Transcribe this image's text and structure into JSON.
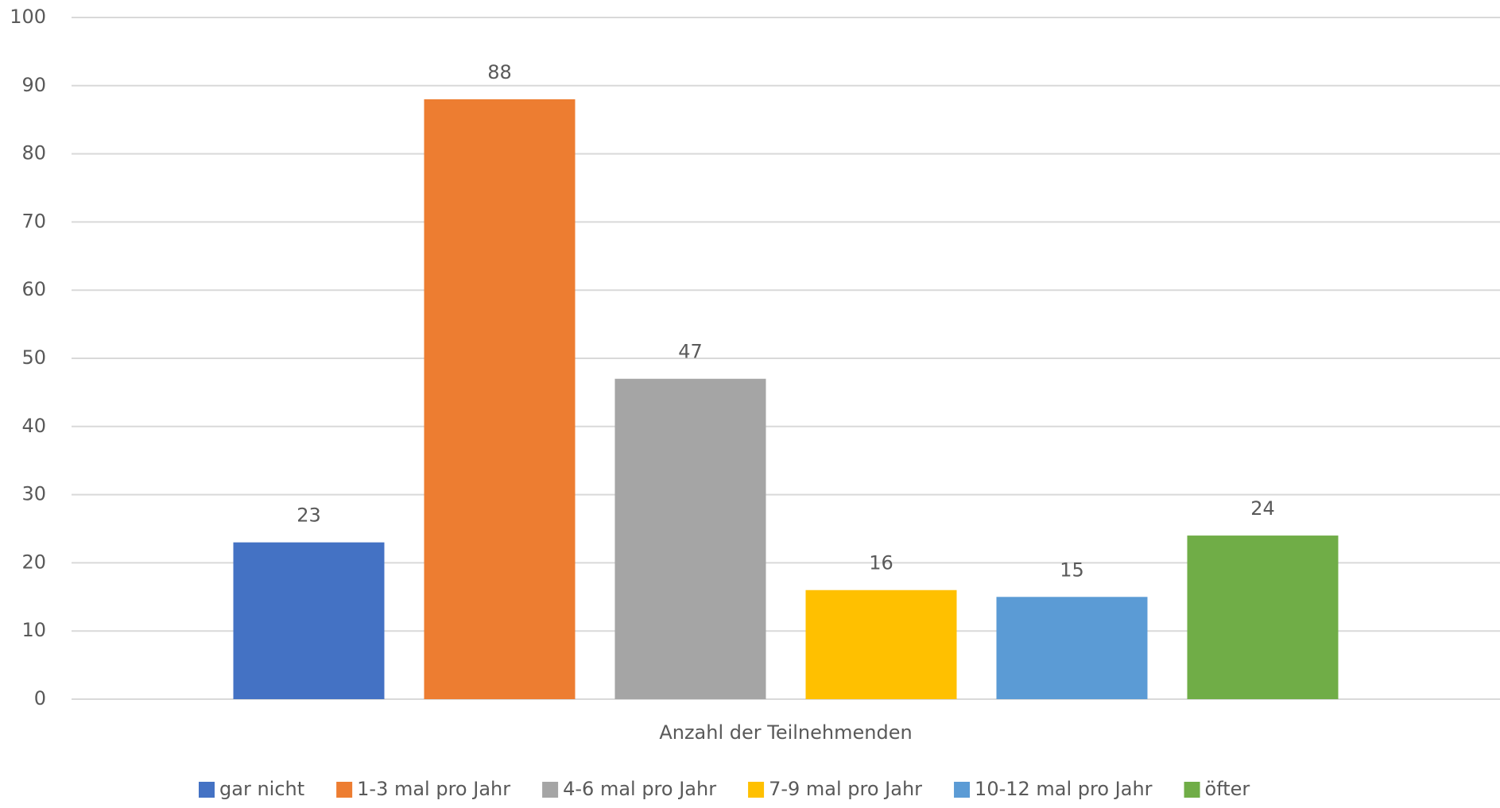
{
  "chart_data": {
    "type": "bar",
    "categories": [
      "Anzahl der Teilnehmenden"
    ],
    "series": [
      {
        "name": "gar nicht",
        "color": "#4472c4",
        "values": [
          23
        ]
      },
      {
        "name": "1-3 mal pro Jahr",
        "color": "#ed7d31",
        "values": [
          88
        ]
      },
      {
        "name": "4-6 mal pro Jahr",
        "color": "#a5a5a5",
        "values": [
          47
        ]
      },
      {
        "name": "7-9 mal pro Jahr",
        "color": "#ffc000",
        "values": [
          16
        ]
      },
      {
        "name": "10-12 mal pro Jahr",
        "color": "#5b9bd5",
        "values": [
          15
        ]
      },
      {
        "name": "öfter",
        "color": "#70ad47",
        "values": [
          24
        ]
      }
    ],
    "ylim": [
      0,
      100
    ],
    "yticks": [
      0,
      10,
      20,
      30,
      40,
      50,
      60,
      70,
      80,
      90,
      100
    ],
    "grid": true,
    "legend": "bottom"
  }
}
